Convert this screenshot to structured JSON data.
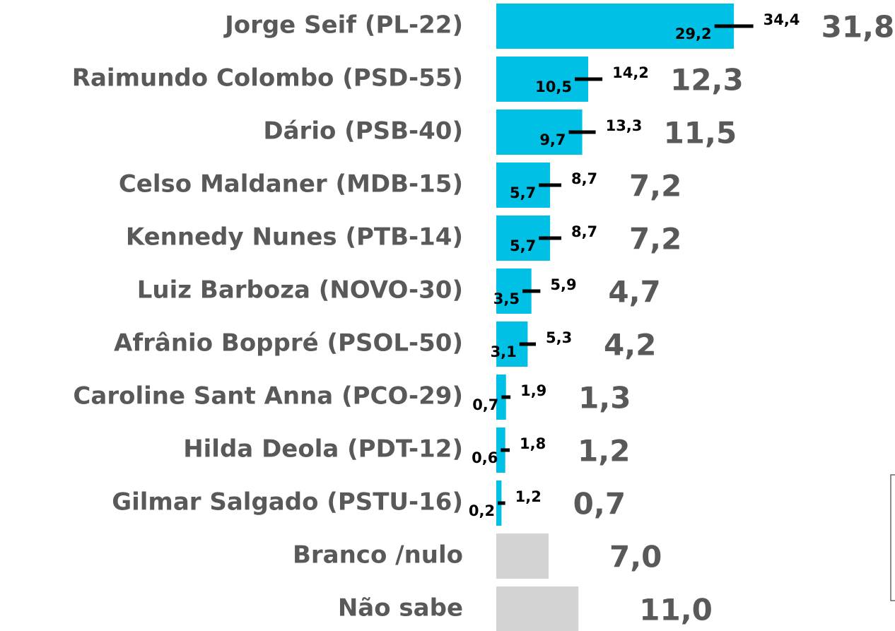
{
  "chart_data": {
    "type": "bar",
    "categories": [
      "Jorge Seif (PL-22)",
      "Raimundo Colombo (PSD-55)",
      "Dário (PSB-40)",
      "Celso Maldaner (MDB-15)",
      "Kennedy Nunes (PTB-14)",
      "Luiz Barboza (NOVO-30)",
      "Afrânio Boppré (PSOL-50)",
      "Caroline Sant Anna (PCO-29)",
      "Hilda Deola (PDT-12)",
      "Gilmar Salgado (PSTU-16)",
      "Branco /nulo",
      "Não sabe"
    ],
    "values": [
      31.8,
      12.3,
      11.5,
      7.2,
      7.2,
      4.7,
      4.2,
      1.3,
      1.2,
      0.7,
      7.0,
      11.0
    ],
    "value_labels": [
      "31,8",
      "12,3",
      "11,5",
      "7,2",
      "7,2",
      "4,7",
      "4,2",
      "1,3",
      "1,2",
      "0,7",
      "7,0",
      "11,0"
    ],
    "lower": [
      29.2,
      10.5,
      9.7,
      5.7,
      5.7,
      3.5,
      3.1,
      0.7,
      0.6,
      0.2,
      null,
      null
    ],
    "lower_labels": [
      "29,2",
      "10,5",
      "9,7",
      "5,7",
      "5,7",
      "3,5",
      "3,1",
      "0,7",
      "0,6",
      "0,2",
      null,
      null
    ],
    "upper": [
      34.4,
      14.2,
      13.3,
      8.7,
      8.7,
      5.9,
      5.3,
      1.9,
      1.8,
      1.2,
      null,
      null
    ],
    "upper_labels": [
      "34,4",
      "14,2",
      "13,3",
      "8,7",
      "8,7",
      "5,9",
      "5,3",
      "1,9",
      "1,8",
      "1,2",
      null,
      null
    ],
    "colors": [
      "#00c0e6",
      "#00c0e6",
      "#00c0e6",
      "#00c0e6",
      "#00c0e6",
      "#00c0e6",
      "#00c0e6",
      "#00c0e6",
      "#00c0e6",
      "#00c0e6",
      "#d3d3d3",
      "#d3d3d3"
    ]
  }
}
